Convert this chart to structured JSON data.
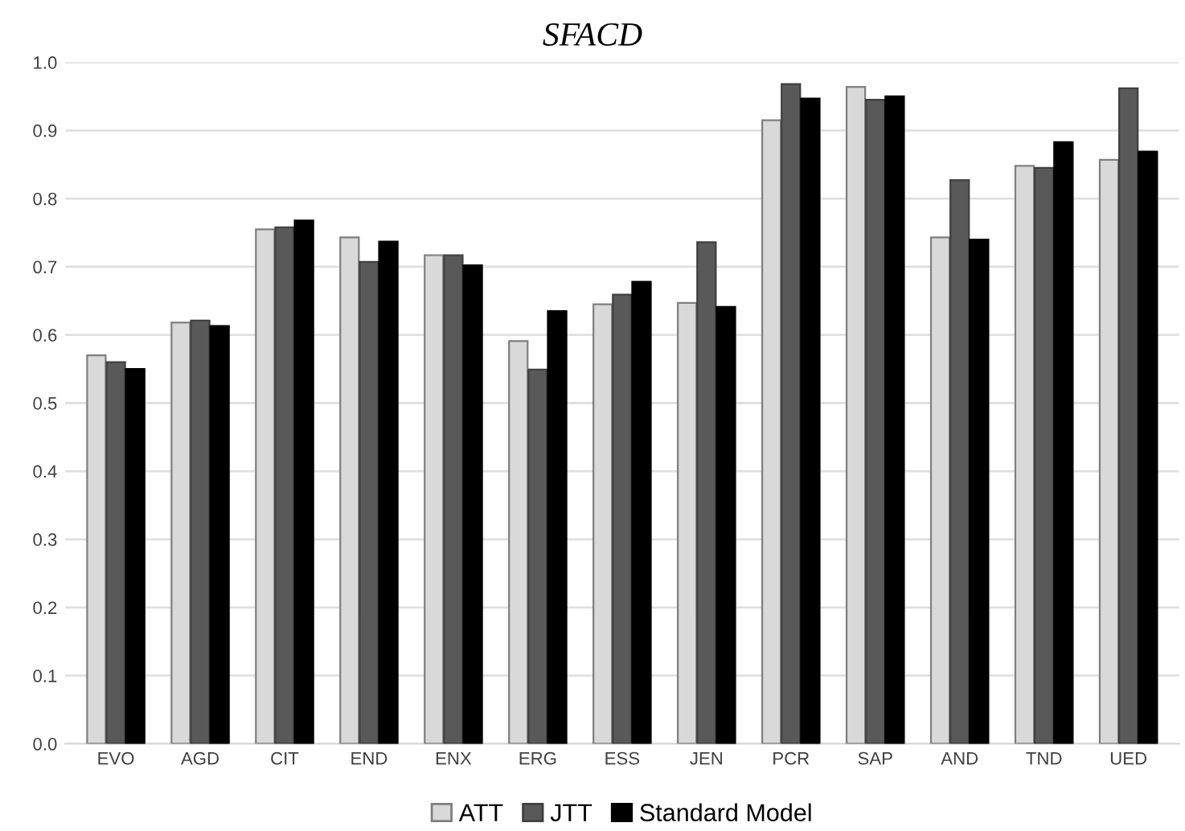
{
  "chart_data": {
    "type": "bar",
    "title": "SFACD",
    "categories": [
      "EVO",
      "AGD",
      "CIT",
      "END",
      "ENX",
      "ERG",
      "ESS",
      "JEN",
      "PCR",
      "SAP",
      "AND",
      "TND",
      "UED"
    ],
    "series": [
      {
        "name": "ATT",
        "color": "#d9d9d9",
        "values": [
          0.57,
          0.618,
          0.755,
          0.743,
          0.717,
          0.591,
          0.645,
          0.647,
          0.915,
          0.964,
          0.743,
          0.848,
          0.857
        ]
      },
      {
        "name": "JTT",
        "color": "#595959",
        "values": [
          0.56,
          0.621,
          0.758,
          0.707,
          0.717,
          0.549,
          0.659,
          0.736,
          0.968,
          0.945,
          0.827,
          0.845,
          0.962
        ]
      },
      {
        "name": "Standard Model",
        "color": "#000000",
        "values": [
          0.55,
          0.613,
          0.768,
          0.737,
          0.702,
          0.635,
          0.678,
          0.641,
          0.947,
          0.95,
          0.74,
          0.883,
          0.869
        ]
      }
    ],
    "ylim": [
      0,
      1.0
    ],
    "yticks": [
      {
        "value": 0,
        "label": "0.0"
      },
      {
        "value": 0.1,
        "label": "0.1"
      },
      {
        "value": 0.2,
        "label": "0.2"
      },
      {
        "value": 0.3,
        "label": "0.3"
      },
      {
        "value": 0.4,
        "label": "0.4"
      },
      {
        "value": 0.5,
        "label": "0.5"
      },
      {
        "value": 0.6,
        "label": "0.6"
      },
      {
        "value": 0.7,
        "label": "0.7"
      },
      {
        "value": 0.8,
        "label": "0.8"
      },
      {
        "value": 0.9,
        "label": "0.9"
      },
      {
        "value": 1.0,
        "label": "1.0"
      }
    ],
    "grid": "y",
    "legend": "bottom"
  }
}
